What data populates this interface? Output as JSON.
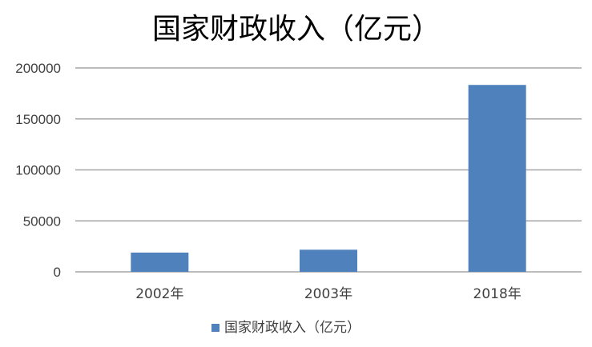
{
  "chart_data": {
    "type": "bar",
    "title": "国家财政收入（亿元）",
    "categories": [
      "2002年",
      "2003年",
      "2018年"
    ],
    "series": [
      {
        "name": "国家财政收入（亿元）",
        "values": [
          18904,
          21715,
          183352
        ],
        "color": "#4f81bd"
      }
    ],
    "xlabel": "",
    "ylabel": "",
    "ylim": [
      0,
      200000
    ],
    "yticks": [
      0,
      50000,
      100000,
      150000,
      200000
    ],
    "grid": true,
    "legend": "bottom"
  }
}
